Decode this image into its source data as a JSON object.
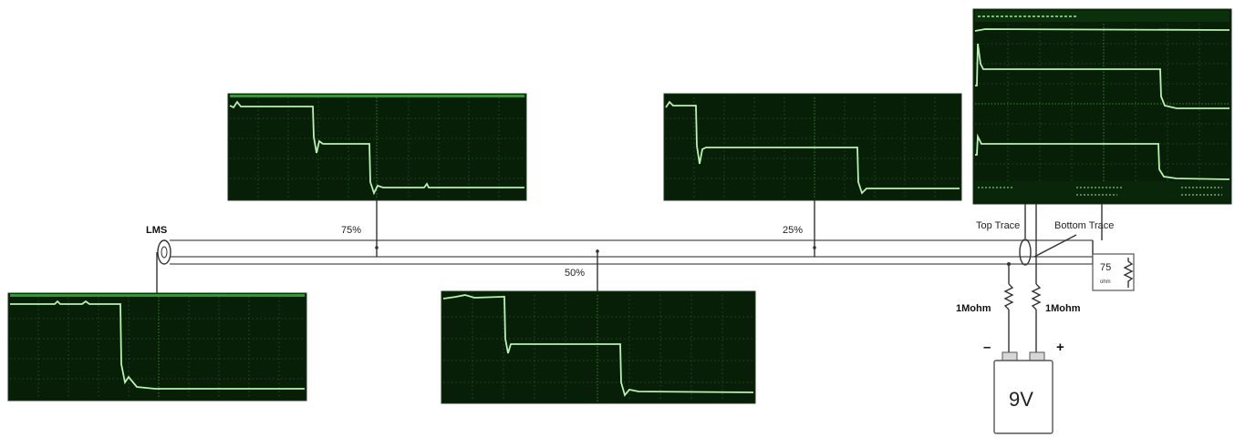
{
  "labels": {
    "lms": "LMS",
    "pct_75": "75%",
    "pct_50": "50%",
    "pct_25": "25%",
    "top_trace": "Top Trace",
    "bottom_trace": "Bottom Trace",
    "r75_value": "75",
    "r75_unit": "ohm",
    "r_left": "1Mohm",
    "r_right": "1Mohm",
    "minus": "–",
    "plus": "+",
    "battery": "9V"
  },
  "colors": {
    "scope_bg": "#061f06",
    "trace": "#b9f2b0",
    "trace_bright": "#7dff6a",
    "wire": "#6b6b6b"
  },
  "icons": [
    "coax-connector-icon",
    "current-probe-icon",
    "resistor-icon",
    "battery-icon"
  ]
}
